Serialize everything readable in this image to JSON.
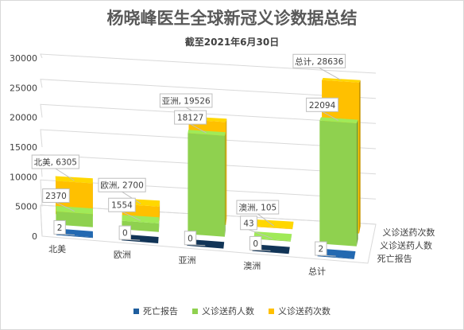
{
  "colors": {
    "deaths": "#1f5e9e",
    "people": "#8fd14f",
    "times": "#ffc000",
    "grid": "#d9d9d9",
    "text": "#404040"
  },
  "chart_data": {
    "type": "bar",
    "title": "杨晓峰医生全球新冠义诊数据总结",
    "subtitle": "截至2021年6月30日",
    "categories": [
      "北美",
      "欧洲",
      "亚洲",
      "澳洲",
      "总计"
    ],
    "series": [
      {
        "name": "死亡报告",
        "values": [
          2,
          0,
          0,
          0,
          2
        ]
      },
      {
        "name": "义诊送药人数",
        "values": [
          2370,
          1554,
          18127,
          43,
          22094
        ]
      },
      {
        "name": "义诊送药次数",
        "values": [
          6305,
          2700,
          19526,
          105,
          28636
        ]
      }
    ],
    "data_labels": [
      [
        "2",
        "0",
        "0",
        "0",
        "2"
      ],
      [
        "2370",
        "1554",
        "18127",
        "43",
        "22094"
      ],
      [
        "北美, 6305",
        "欧洲, 2700",
        "亚洲, 19526",
        "澳洲, 105",
        "总计, 28636"
      ]
    ],
    "y_ticks": [
      "0",
      "5000",
      "10000",
      "15000",
      "20000",
      "25000",
      "30000"
    ],
    "ylim": [
      0,
      30000
    ],
    "depth_labels": [
      "义诊送药次数",
      "义诊送药人数",
      "死亡报告"
    ],
    "legend": [
      "死亡报告",
      "义诊送药人数",
      "义诊送药次数"
    ],
    "legend_position": "bottom",
    "grid": true,
    "style": "3d-column"
  }
}
